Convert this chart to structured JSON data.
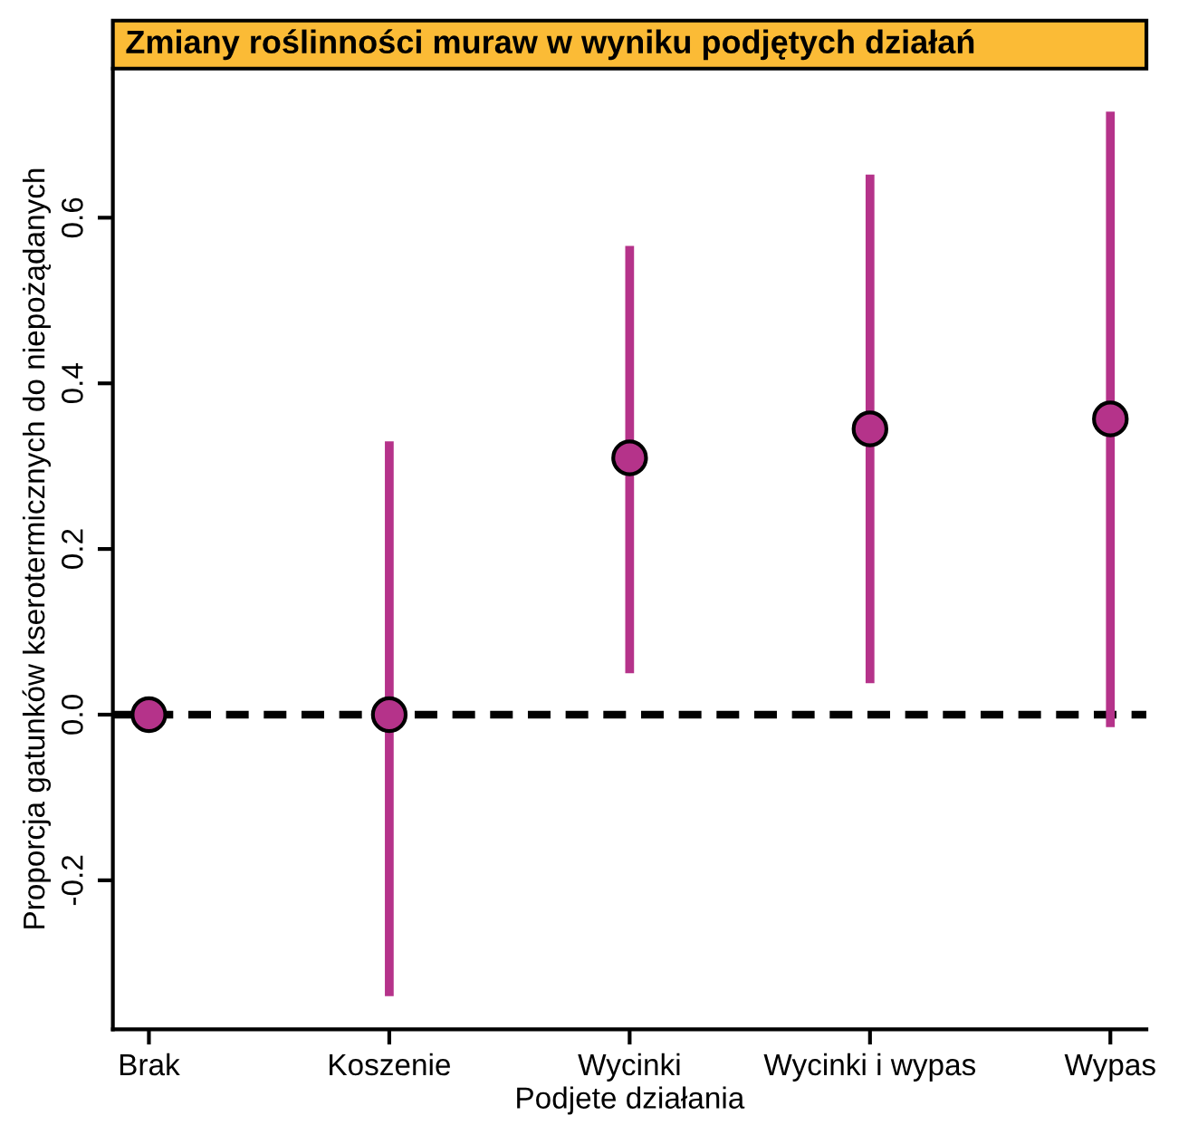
{
  "chart_data": {
    "type": "scatter",
    "title": "Zmiany roślinności muraw w wyniku podjętych działań",
    "xlabel": "Podjete działania",
    "ylabel": "Proporcja gatunków kserotermicznych do niepożądanych",
    "categories": [
      "Brak",
      "Koszenie",
      "Wycinki",
      "Wycinki i wypas",
      "Wypas"
    ],
    "series": [
      {
        "color": "#b5338a",
        "values": [
          0,
          0,
          0.31,
          0.345,
          0.357
        ],
        "errors": [
          null,
          [
            -0.34,
            0.33
          ],
          [
            0.05,
            0.566
          ],
          [
            0.038,
            0.652
          ],
          [
            -0.015,
            0.728
          ]
        ]
      }
    ],
    "ylim": [
      -0.38,
      0.78
    ],
    "yticks": [
      {
        "value": -0.2,
        "label": "-0.2"
      },
      {
        "value": 0,
        "label": "0.0"
      },
      {
        "value": 0.2,
        "label": "0.2"
      },
      {
        "value": 0.4,
        "label": "0.4"
      },
      {
        "value": 0.6,
        "label": "0.6"
      }
    ],
    "ref_lines": [
      {
        "axis": "y",
        "value": 0,
        "color": "#000000",
        "line_style": "dashed"
      }
    ],
    "marker": "circle",
    "grid": false,
    "legend": false
  }
}
